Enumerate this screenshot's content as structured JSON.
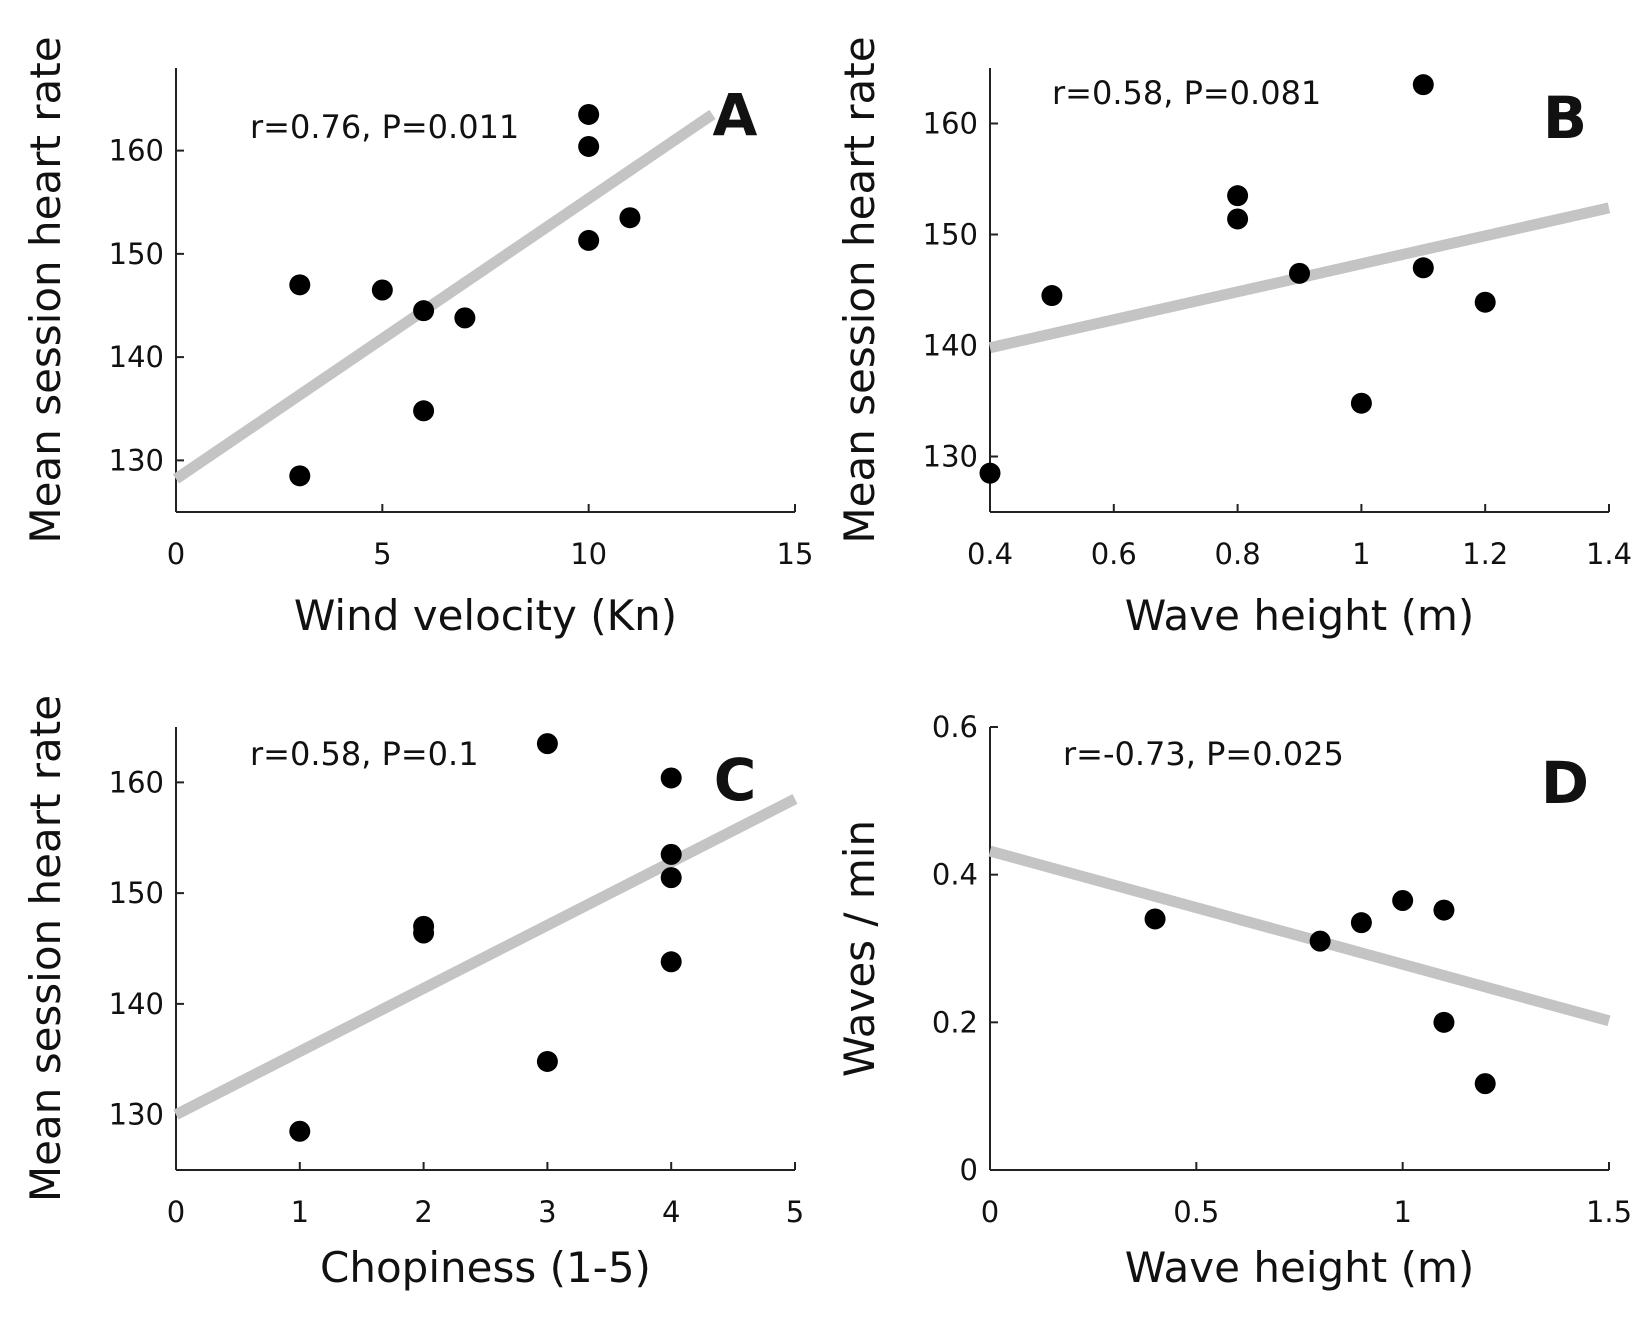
{
  "chart_data": [
    {
      "type": "scatter",
      "panel": "A",
      "xlabel": "Wind velocity (Kn)",
      "ylabel": "Mean session heart rate",
      "annotation": "r=0.76, P=0.011",
      "xlim": [
        0,
        15
      ],
      "ylim": [
        125,
        168
      ],
      "xticks": [
        0,
        5,
        10,
        15
      ],
      "yticks": [
        130,
        140,
        150,
        160
      ],
      "points": [
        {
          "x": 3,
          "y": 147
        },
        {
          "x": 3,
          "y": 128.5
        },
        {
          "x": 5,
          "y": 146.5
        },
        {
          "x": 6,
          "y": 144.5
        },
        {
          "x": 6,
          "y": 134.8
        },
        {
          "x": 7,
          "y": 143.8
        },
        {
          "x": 10,
          "y": 163.5
        },
        {
          "x": 10,
          "y": 160.4
        },
        {
          "x": 10,
          "y": 151.3
        },
        {
          "x": 11,
          "y": 153.5
        }
      ],
      "fit": {
        "x": [
          0,
          13
        ],
        "y": [
          128.2,
          163.5
        ]
      }
    },
    {
      "type": "scatter",
      "panel": "B",
      "xlabel": "Wave height (m)",
      "ylabel": "Mean session heart rate",
      "annotation": "r=0.58, P=0.081",
      "xlim": [
        0.4,
        1.4
      ],
      "ylim": [
        125,
        165
      ],
      "xticks": [
        0.4,
        0.6,
        0.8,
        1,
        1.2,
        1.4
      ],
      "xtick_labels": [
        "0.4",
        "0.6",
        "0.8",
        "1",
        "1.2",
        "1.4"
      ],
      "yticks": [
        130,
        140,
        150,
        160
      ],
      "points": [
        {
          "x": 0.4,
          "y": 128.5
        },
        {
          "x": 0.5,
          "y": 144.5
        },
        {
          "x": 0.8,
          "y": 153.5
        },
        {
          "x": 0.8,
          "y": 151.4
        },
        {
          "x": 0.9,
          "y": 146.5
        },
        {
          "x": 1.0,
          "y": 134.8
        },
        {
          "x": 1.1,
          "y": 163.5
        },
        {
          "x": 1.1,
          "y": 147
        },
        {
          "x": 1.2,
          "y": 143.9
        }
      ],
      "fit": {
        "x": [
          0.4,
          1.4
        ],
        "y": [
          139.8,
          152.4
        ]
      }
    },
    {
      "type": "scatter",
      "panel": "C",
      "xlabel": "Chopiness (1-5)",
      "ylabel": "Mean session heart rate",
      "annotation": "r=0.58, P=0.1",
      "xlim": [
        0,
        5
      ],
      "ylim": [
        125,
        165
      ],
      "xticks": [
        0,
        1,
        2,
        3,
        4,
        5
      ],
      "yticks": [
        130,
        140,
        150,
        160
      ],
      "points": [
        {
          "x": 1,
          "y": 128.5
        },
        {
          "x": 2,
          "y": 147
        },
        {
          "x": 2,
          "y": 146.4
        },
        {
          "x": 3,
          "y": 163.5
        },
        {
          "x": 3,
          "y": 134.8
        },
        {
          "x": 4,
          "y": 160.4
        },
        {
          "x": 4,
          "y": 153.5
        },
        {
          "x": 4,
          "y": 151.4
        },
        {
          "x": 4,
          "y": 143.8
        }
      ],
      "fit": {
        "x": [
          0,
          5
        ],
        "y": [
          130.0,
          158.5
        ]
      }
    },
    {
      "type": "scatter",
      "panel": "D",
      "xlabel": "Wave height (m)",
      "ylabel": "Waves / min",
      "annotation": "r=-0.73, P=0.025",
      "xlim": [
        0,
        1.5
      ],
      "ylim": [
        0,
        0.6
      ],
      "xticks": [
        0,
        0.5,
        1,
        1.5
      ],
      "xtick_labels": [
        "0",
        "0.5",
        "1",
        "1.5"
      ],
      "yticks": [
        0,
        0.2,
        0.4,
        0.6
      ],
      "ytick_labels": [
        "0",
        "0.2",
        "0.4",
        "0.6"
      ],
      "points": [
        {
          "x": 0.4,
          "y": 0.34
        },
        {
          "x": 0.8,
          "y": 0.31
        },
        {
          "x": 0.9,
          "y": 0.335
        },
        {
          "x": 1.0,
          "y": 0.365
        },
        {
          "x": 1.1,
          "y": 0.352
        },
        {
          "x": 1.1,
          "y": 0.2
        },
        {
          "x": 1.2,
          "y": 0.117
        }
      ],
      "fit": {
        "x": [
          0,
          1.5
        ],
        "y": [
          0.432,
          0.202
        ]
      }
    }
  ]
}
